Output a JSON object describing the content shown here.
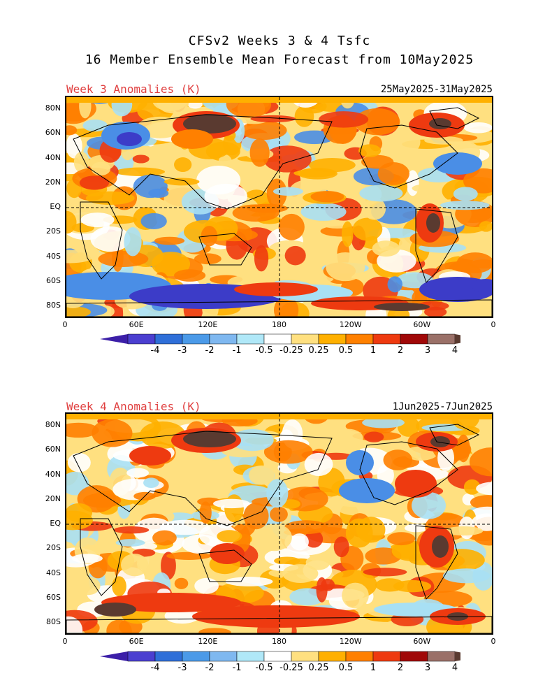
{
  "title_line1": "CFSv2 Weeks 3 & 4 Tsfc",
  "title_line2": "16 Member Ensemble Mean Forecast from 10May2025",
  "panels": [
    {
      "label": "Week 3 Anomalies (K)",
      "dates": "25May2025-31May2025"
    },
    {
      "label": "Week 4 Anomalies (K)",
      "dates": "1Jun2025-7Jun2025"
    }
  ],
  "lat_ticks": [
    "80N",
    "60N",
    "40N",
    "20N",
    "EQ",
    "20S",
    "40S",
    "60S",
    "80S"
  ],
  "lon_ticks": [
    "0",
    "60E",
    "120E",
    "180",
    "120W",
    "60W",
    "0"
  ],
  "colorbar": {
    "labels": [
      "-4",
      "-3",
      "-2",
      "-1",
      "-0.5",
      "-0.25",
      "0.25",
      "0.5",
      "1",
      "2",
      "3",
      "4"
    ],
    "colors": [
      "#3c1fa8",
      "#4b3fd0",
      "#2f6fd8",
      "#4b9ae8",
      "#7fb8f0",
      "#b0e8f8",
      "#ffffff",
      "#ffe080",
      "#ffb000",
      "#ff8000",
      "#ee3a10",
      "#a00808",
      "#9a7068",
      "#5a3a30"
    ]
  },
  "anomaly_colors": {
    "deep_cold": "#3c3cc8",
    "cold": "#4a8ee6",
    "cool": "#a8e0f4",
    "neutral": "#ffffff",
    "mild": "#ffe080",
    "warm": "#ffb000",
    "hot": "#ff8000",
    "very_hot": "#ee3a10",
    "extreme": "#a00808",
    "peak": "#5a3a30"
  }
}
